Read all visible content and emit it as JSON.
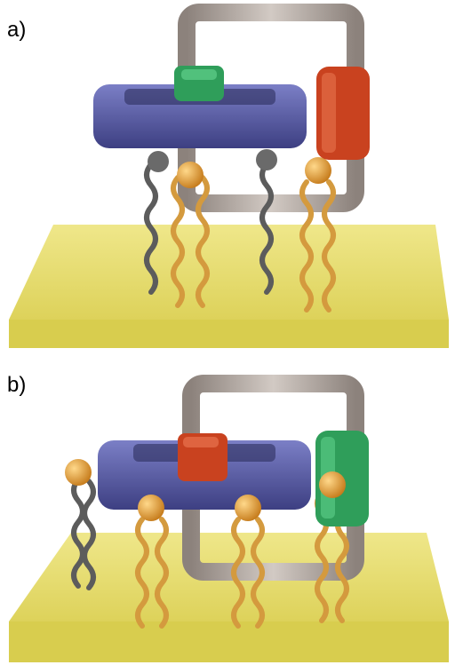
{
  "panels": [
    {
      "label": "a)",
      "box_colors": {
        "top_box": "#2f9e5a",
        "side_box": "#c9421f"
      },
      "state": "both-loops-bound"
    },
    {
      "label": "b)",
      "box_colors": {
        "top_box": "#c9421f",
        "side_box": "#2f9e5a"
      },
      "state": "loops-lifted"
    }
  ],
  "colors": {
    "ring": "#5357a6",
    "ring_dark": "#3d3f82",
    "frame": "#b6aca6",
    "frame_dark": "#8c827c",
    "surface": "#e6dd6a",
    "surface_edge": "#d2c84a",
    "stopper": "#e8a63a",
    "chain": "#d49a3e",
    "chain_dark": "#5a5a5a"
  }
}
